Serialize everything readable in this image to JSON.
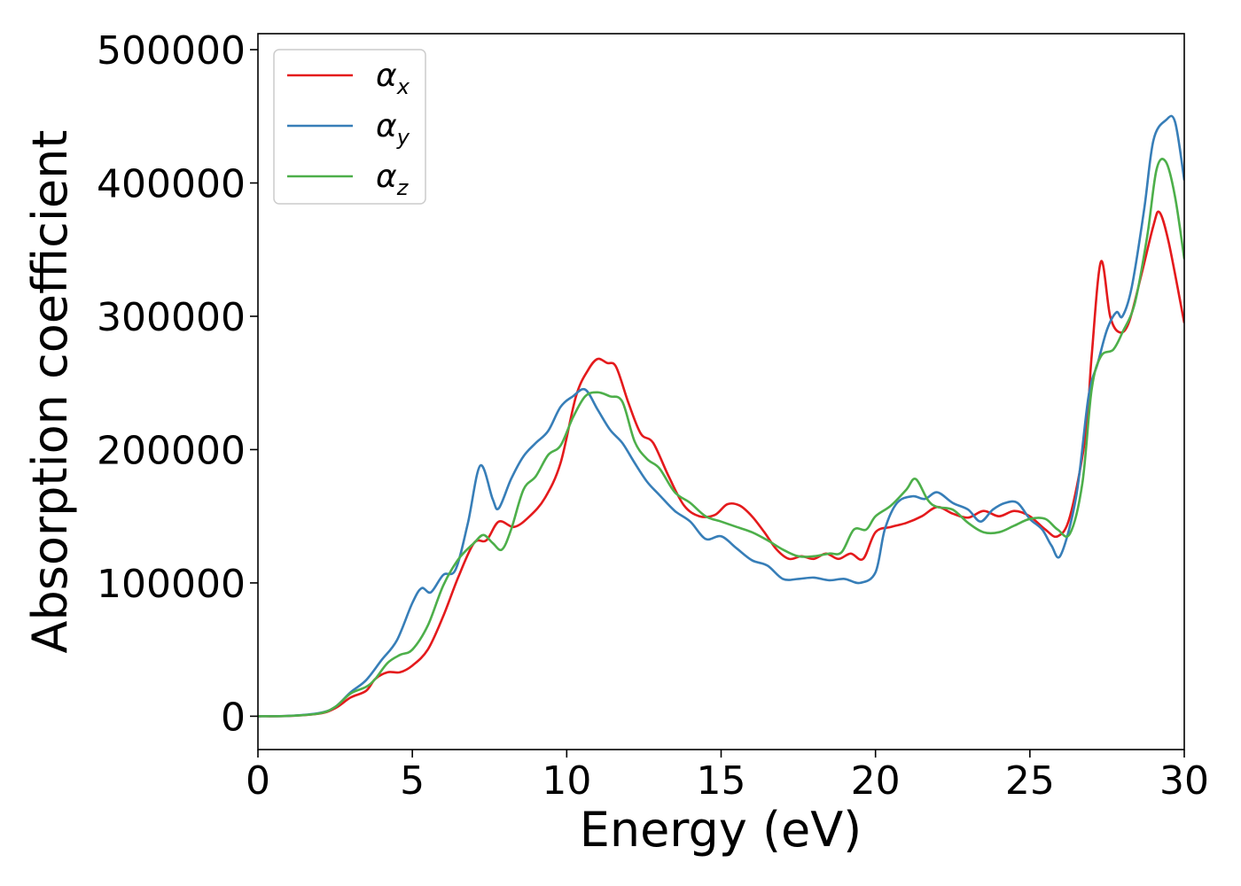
{
  "chart_data": {
    "type": "line",
    "title": "",
    "xlabel": "Energy (eV)",
    "ylabel": "Absorption coefficient",
    "xlim": [
      0,
      30
    ],
    "ylim": [
      -25000,
      512000
    ],
    "xticks": [
      0,
      5,
      10,
      15,
      20,
      25,
      30
    ],
    "yticks": [
      0,
      100000,
      200000,
      300000,
      400000,
      500000
    ],
    "xtick_labels": [
      "0",
      "5",
      "10",
      "15",
      "20",
      "25",
      "30"
    ],
    "ytick_labels": [
      "0",
      "100000",
      "200000",
      "300000",
      "400000",
      "500000"
    ],
    "grid": false,
    "legend": {
      "placement": "top-left"
    },
    "series": [
      {
        "name": "αx",
        "symbol": "α",
        "subscript": "x",
        "color": "#e41a1c",
        "x": [
          0,
          1,
          2,
          2.5,
          3,
          3.5,
          3.8,
          4.2,
          4.6,
          5.0,
          5.5,
          6.0,
          6.5,
          7.0,
          7.4,
          7.8,
          8.3,
          8.8,
          9.3,
          9.8,
          10.3,
          10.7,
          11.0,
          11.3,
          11.6,
          12.0,
          12.4,
          12.8,
          13.3,
          13.8,
          14.3,
          14.8,
          15.2,
          15.6,
          16.0,
          16.4,
          16.8,
          17.2,
          17.6,
          18.0,
          18.4,
          18.8,
          19.2,
          19.6,
          20.0,
          20.5,
          21.0,
          21.5,
          22.0,
          22.5,
          23.0,
          23.5,
          24.0,
          24.5,
          25.0,
          25.5,
          25.9,
          26.3,
          26.8,
          27.0,
          27.3,
          27.6,
          27.9,
          28.2,
          28.6,
          29.0,
          29.2,
          29.5,
          30.0
        ],
        "y": [
          0,
          200,
          2000,
          6000,
          14000,
          19000,
          28000,
          33000,
          33000,
          38000,
          50000,
          75000,
          105000,
          130000,
          132000,
          146000,
          142000,
          150000,
          164000,
          190000,
          240000,
          260000,
          268000,
          265000,
          262000,
          235000,
          212000,
          205000,
          180000,
          158000,
          150000,
          151000,
          159000,
          158000,
          150000,
          138000,
          125000,
          118000,
          120000,
          118000,
          122000,
          118000,
          122000,
          118000,
          138000,
          142000,
          145000,
          150000,
          157000,
          152000,
          149000,
          154000,
          150000,
          154000,
          150000,
          140000,
          135000,
          150000,
          210000,
          270000,
          341000,
          300000,
          288000,
          295000,
          330000,
          368000,
          378000,
          355000,
          295000
        ]
      },
      {
        "name": "αy",
        "symbol": "α",
        "subscript": "y",
        "color": "#377eb8",
        "x": [
          0,
          1,
          2,
          2.5,
          3,
          3.5,
          4.0,
          4.5,
          5.0,
          5.3,
          5.6,
          6.0,
          6.4,
          6.8,
          7.2,
          7.6,
          7.8,
          8.2,
          8.6,
          9.0,
          9.4,
          9.8,
          10.2,
          10.6,
          11.0,
          11.4,
          11.8,
          12.2,
          12.6,
          13.0,
          13.5,
          14.0,
          14.5,
          15.0,
          15.5,
          16.0,
          16.5,
          17.0,
          17.5,
          18.0,
          18.5,
          19.0,
          19.5,
          20.0,
          20.3,
          20.7,
          21.2,
          21.6,
          22.0,
          22.5,
          23.0,
          23.4,
          23.8,
          24.2,
          24.6,
          25.0,
          25.4,
          25.7,
          26.0,
          26.5,
          26.9,
          27.2,
          27.5,
          27.8,
          28.0,
          28.3,
          28.7,
          29.0,
          29.4,
          29.7,
          30.0
        ],
        "y": [
          0,
          300,
          2500,
          7000,
          18000,
          27000,
          42000,
          57000,
          85000,
          96000,
          93000,
          106000,
          110000,
          145000,
          188000,
          163000,
          156000,
          178000,
          195000,
          205000,
          214000,
          232000,
          240000,
          245000,
          230000,
          215000,
          205000,
          190000,
          176000,
          166000,
          154000,
          146000,
          133000,
          135000,
          126000,
          117000,
          113000,
          103000,
          103000,
          104000,
          102000,
          103000,
          100000,
          108000,
          140000,
          160000,
          165000,
          163000,
          168000,
          160000,
          155000,
          146000,
          155000,
          160000,
          160000,
          148000,
          140000,
          128000,
          121000,
          165000,
          240000,
          265000,
          290000,
          303000,
          300000,
          322000,
          380000,
          432000,
          447000,
          446000,
          402000
        ]
      },
      {
        "name": "αz",
        "symbol": "α",
        "subscript": "z",
        "color": "#4daf4a",
        "x": [
          0,
          1,
          2,
          2.5,
          3,
          3.5,
          3.8,
          4.2,
          4.6,
          5.0,
          5.5,
          6.0,
          6.5,
          7.0,
          7.3,
          7.6,
          7.9,
          8.2,
          8.6,
          9.0,
          9.4,
          9.8,
          10.2,
          10.6,
          11.0,
          11.4,
          11.8,
          12.2,
          12.6,
          13.0,
          13.5,
          14.0,
          14.5,
          15.0,
          15.5,
          16.0,
          16.5,
          17.0,
          17.5,
          18.0,
          18.5,
          18.9,
          19.3,
          19.7,
          20.0,
          20.5,
          21.0,
          21.3,
          21.7,
          22.0,
          22.5,
          23.0,
          23.5,
          24.0,
          24.5,
          25.0,
          25.5,
          25.9,
          26.3,
          26.7,
          27.0,
          27.3,
          27.7,
          28.0,
          28.4,
          28.8,
          29.1,
          29.4,
          29.7,
          30.0
        ],
        "y": [
          0,
          250,
          2200,
          7000,
          17000,
          22000,
          28000,
          40000,
          46000,
          50000,
          68000,
          98000,
          118000,
          130000,
          136000,
          130000,
          125000,
          140000,
          170000,
          180000,
          196000,
          203000,
          224000,
          240000,
          243000,
          240000,
          236000,
          206000,
          193000,
          186000,
          168000,
          160000,
          150000,
          146000,
          142000,
          138000,
          132000,
          125000,
          120000,
          120000,
          122000,
          123000,
          140000,
          140000,
          150000,
          158000,
          170000,
          178000,
          162000,
          157000,
          155000,
          145000,
          138000,
          138000,
          143000,
          148000,
          148000,
          140000,
          137000,
          175000,
          245000,
          270000,
          275000,
          288000,
          310000,
          360000,
          410000,
          416000,
          390000,
          343000
        ]
      }
    ]
  }
}
